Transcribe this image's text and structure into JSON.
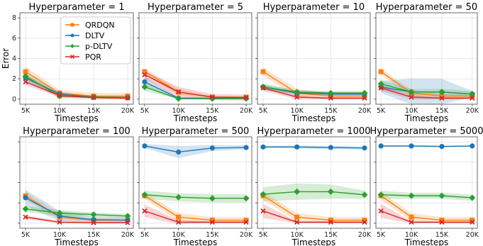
{
  "colors": {
    "QRDQN": "#ff7f0e",
    "DLTV": "#1f77b4",
    "p-DLTV": "#2ca02c",
    "PQR": "#d62728"
  },
  "chart_data": [
    {
      "type": "line",
      "title": "Hyperparameter = 1",
      "categories": [
        "5K",
        "10K",
        "15K",
        "20K"
      ],
      "xlabel": "Timesteps",
      "ylabel": "Error",
      "ylim": [
        -0.5,
        8.5
      ],
      "yticks": [
        "0",
        "2",
        "4",
        "6",
        "8"
      ],
      "show_yticks": true,
      "grid": true,
      "legend": "top-right",
      "series": [
        {
          "name": "QRDQN",
          "values": [
            2.7,
            0.6,
            0.3,
            0.3
          ],
          "band": [
            0.5,
            0.3,
            0.3,
            0.3
          ]
        },
        {
          "name": "DLTV",
          "values": [
            2.1,
            0.5,
            0.2,
            0.15
          ],
          "band": [
            0.3,
            0.2,
            0.1,
            0.1
          ]
        },
        {
          "name": "p-DLTV",
          "values": [
            2.25,
            0.3,
            0.2,
            0.15
          ],
          "band": [
            0.3,
            0.2,
            0.1,
            0.1
          ]
        },
        {
          "name": "PQR",
          "values": [
            1.7,
            0.35,
            0.15,
            0.1
          ],
          "band": [
            0.3,
            0.2,
            0.1,
            0.1
          ]
        }
      ]
    },
    {
      "type": "line",
      "title": "Hyperparameter = 5",
      "categories": [
        "5K",
        "10K",
        "15K",
        "20K"
      ],
      "xlabel": "Timesteps",
      "ylabel": "",
      "ylim": [
        -0.5,
        8.5
      ],
      "yticks": [],
      "show_yticks": false,
      "grid": true,
      "legend": "none",
      "series": [
        {
          "name": "QRDQN",
          "values": [
            2.7,
            0.7,
            0.2,
            0.2
          ],
          "band": [
            0.3,
            0.3,
            0.1,
            0.1
          ]
        },
        {
          "name": "DLTV",
          "values": [
            1.7,
            0.1,
            0.1,
            0.1
          ],
          "band": [
            0.5,
            0.1,
            0.05,
            0.05
          ]
        },
        {
          "name": "p-DLTV",
          "values": [
            1.2,
            0.05,
            0.05,
            0.05
          ],
          "band": [
            0.4,
            0.05,
            0.05,
            0.05
          ]
        },
        {
          "name": "PQR",
          "values": [
            2.4,
            0.7,
            0.2,
            0.15
          ],
          "band": [
            0.4,
            0.5,
            0.3,
            0.3
          ]
        }
      ]
    },
    {
      "type": "line",
      "title": "Hyperparameter = 10",
      "categories": [
        "5K",
        "10K",
        "15K",
        "20K"
      ],
      "xlabel": "Timesteps",
      "ylabel": "",
      "ylim": [
        -0.5,
        8.5
      ],
      "yticks": [],
      "show_yticks": false,
      "grid": true,
      "legend": "none",
      "series": [
        {
          "name": "QRDQN",
          "values": [
            2.7,
            0.6,
            0.3,
            0.3
          ],
          "band": [
            0.4,
            0.4,
            0.3,
            0.3
          ]
        },
        {
          "name": "DLTV",
          "values": [
            1.2,
            0.6,
            0.5,
            0.5
          ],
          "band": [
            0.3,
            0.2,
            0.2,
            0.2
          ]
        },
        {
          "name": "p-DLTV",
          "values": [
            1.2,
            0.7,
            0.6,
            0.6
          ],
          "band": [
            0.3,
            0.2,
            0.2,
            0.2
          ]
        },
        {
          "name": "PQR",
          "values": [
            1.1,
            0.2,
            0.1,
            0.1
          ],
          "band": [
            0.3,
            0.2,
            0.1,
            0.1
          ]
        }
      ]
    },
    {
      "type": "line",
      "title": "Hyperparameter = 50",
      "categories": [
        "5K",
        "10K",
        "15K",
        "20K"
      ],
      "xlabel": "Timesteps",
      "ylabel": "",
      "ylim": [
        -0.5,
        8.5
      ],
      "yticks": [],
      "show_yticks": false,
      "grid": true,
      "legend": "none",
      "series": [
        {
          "name": "QRDQN",
          "values": [
            2.7,
            0.6,
            0.3,
            0.3
          ],
          "band": [
            0.3,
            0.3,
            0.2,
            0.2
          ]
        },
        {
          "name": "DLTV",
          "values": [
            1.2,
            0.7,
            0.7,
            0.5
          ],
          "band": [
            0.6,
            1.3,
            1.3,
            0.3
          ]
        },
        {
          "name": "p-DLTV",
          "values": [
            1.5,
            0.7,
            0.7,
            0.5
          ],
          "band": [
            0.4,
            0.3,
            0.3,
            0.3
          ]
        },
        {
          "name": "PQR",
          "values": [
            1.1,
            0.2,
            0.1,
            0.1
          ],
          "band": [
            0.3,
            0.2,
            0.1,
            0.1
          ]
        }
      ]
    },
    {
      "type": "line",
      "title": "Hyperparameter = 100",
      "categories": [
        "5K",
        "10K",
        "15K",
        "20K"
      ],
      "xlabel": "Timesteps",
      "ylabel": "",
      "ylim": [
        -0.5,
        8.5
      ],
      "yticks": [],
      "show_yticks": false,
      "grid": true,
      "legend": "none",
      "series": [
        {
          "name": "QRDQN",
          "values": [
            2.7,
            0.6,
            0.3,
            0.3
          ],
          "band": [
            0.4,
            0.3,
            0.2,
            0.2
          ]
        },
        {
          "name": "DLTV",
          "values": [
            2.5,
            0.7,
            0.35,
            0.3
          ],
          "band": [
            0.8,
            0.5,
            0.3,
            0.3
          ]
        },
        {
          "name": "p-DLTV",
          "values": [
            1.4,
            1.0,
            0.85,
            0.7
          ],
          "band": [
            0.3,
            0.3,
            0.2,
            0.2
          ]
        },
        {
          "name": "PQR",
          "values": [
            0.6,
            0.1,
            0.05,
            0.05
          ],
          "band": [
            0.2,
            0.1,
            0.05,
            0.05
          ]
        }
      ]
    },
    {
      "type": "line",
      "title": "Hyperparameter = 500",
      "categories": [
        "5K",
        "10K",
        "15K",
        "20K"
      ],
      "xlabel": "Timesteps",
      "ylabel": "",
      "ylim": [
        -0.5,
        8.5
      ],
      "yticks": [],
      "show_yticks": false,
      "grid": true,
      "legend": "none",
      "series": [
        {
          "name": "QRDQN",
          "values": [
            2.7,
            0.6,
            0.3,
            0.3
          ],
          "band": [
            0.3,
            0.4,
            0.3,
            0.3
          ]
        },
        {
          "name": "DLTV",
          "values": [
            7.6,
            7.0,
            7.4,
            7.45
          ],
          "band": [
            0.2,
            0.6,
            0.3,
            0.2
          ]
        },
        {
          "name": "p-DLTV",
          "values": [
            2.8,
            2.55,
            2.45,
            2.45
          ],
          "band": [
            0.4,
            0.4,
            0.4,
            0.4
          ]
        },
        {
          "name": "PQR",
          "values": [
            1.2,
            0.1,
            0.1,
            0.1
          ],
          "band": [
            0.6,
            0.2,
            0.1,
            0.1
          ]
        }
      ]
    },
    {
      "type": "line",
      "title": "Hyperparameter = 1000",
      "categories": [
        "5K",
        "10K",
        "15K",
        "20K"
      ],
      "xlabel": "Timesteps",
      "ylabel": "",
      "ylim": [
        -0.5,
        8.5
      ],
      "yticks": [],
      "show_yticks": false,
      "grid": true,
      "legend": "none",
      "series": [
        {
          "name": "QRDQN",
          "values": [
            2.7,
            0.6,
            0.3,
            0.3
          ],
          "band": [
            0.4,
            0.4,
            0.3,
            0.3
          ]
        },
        {
          "name": "DLTV",
          "values": [
            7.5,
            7.5,
            7.45,
            7.4
          ],
          "band": [
            0.1,
            0.15,
            0.15,
            0.15
          ]
        },
        {
          "name": "p-DLTV",
          "values": [
            2.85,
            3.1,
            3.1,
            2.8
          ],
          "band": [
            0.7,
            0.8,
            0.7,
            0.4
          ]
        },
        {
          "name": "PQR",
          "values": [
            1.2,
            0.1,
            0.1,
            0.1
          ],
          "band": [
            0.7,
            0.1,
            0.1,
            0.1
          ]
        }
      ]
    },
    {
      "type": "line",
      "title": "Hyperparameter = 5000",
      "categories": [
        "5K",
        "10K",
        "15K",
        "20K"
      ],
      "xlabel": "Timesteps",
      "ylabel": "",
      "ylim": [
        -0.5,
        8.5
      ],
      "yticks": [],
      "show_yticks": false,
      "grid": true,
      "legend": "none",
      "series": [
        {
          "name": "QRDQN",
          "values": [
            2.7,
            0.6,
            0.3,
            0.3
          ],
          "band": [
            0.4,
            0.4,
            0.3,
            0.3
          ]
        },
        {
          "name": "DLTV",
          "values": [
            7.6,
            7.6,
            7.55,
            7.6
          ],
          "band": [
            0.08,
            0.08,
            0.08,
            0.08
          ]
        },
        {
          "name": "p-DLTV",
          "values": [
            2.8,
            2.7,
            2.7,
            2.5
          ],
          "band": [
            0.4,
            0.3,
            0.3,
            0.3
          ]
        },
        {
          "name": "PQR",
          "values": [
            1.2,
            0.1,
            0.1,
            0.1
          ],
          "band": [
            0.7,
            0.1,
            0.1,
            0.1
          ]
        }
      ]
    }
  ]
}
